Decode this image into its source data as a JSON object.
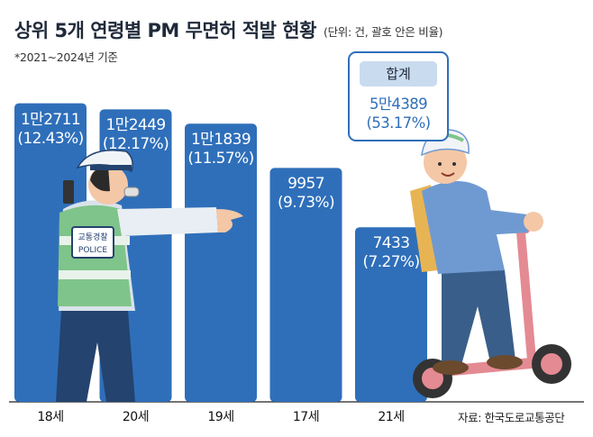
{
  "header": {
    "title": "상위 5개 연령별 PM 무면허 적발 현황",
    "unit": "(단위: 건, 괄호 안은 비율)",
    "note": "*2021~2024년 기준"
  },
  "chart_data": {
    "type": "bar",
    "title": "상위 5개 연령별 PM 무면허 적발 현황",
    "categories": [
      "18세",
      "20세",
      "19세",
      "17세",
      "21세"
    ],
    "values": [
      12711,
      12449,
      11839,
      9957,
      7433
    ],
    "value_labels": [
      "1만2711",
      "1만2449",
      "1만1839",
      "9957",
      "7433"
    ],
    "percent_labels": [
      "(12.43%)",
      "(12.17%)",
      "(11.57%)",
      "(9.73%)",
      "(7.27%)"
    ],
    "percentages": [
      12.43,
      12.17,
      11.57,
      9.73,
      7.27
    ],
    "ylim": [
      0,
      13500
    ],
    "grid": false,
    "bar_color": "#2f6fba"
  },
  "total": {
    "label": "합계",
    "value": "5만4389",
    "percent": "(53.17%)"
  },
  "illustrations": {
    "officer_vest_text_1": "교통경찰",
    "officer_vest_text_2": "POLICE"
  },
  "source": "자료: 한국도로교통공단"
}
